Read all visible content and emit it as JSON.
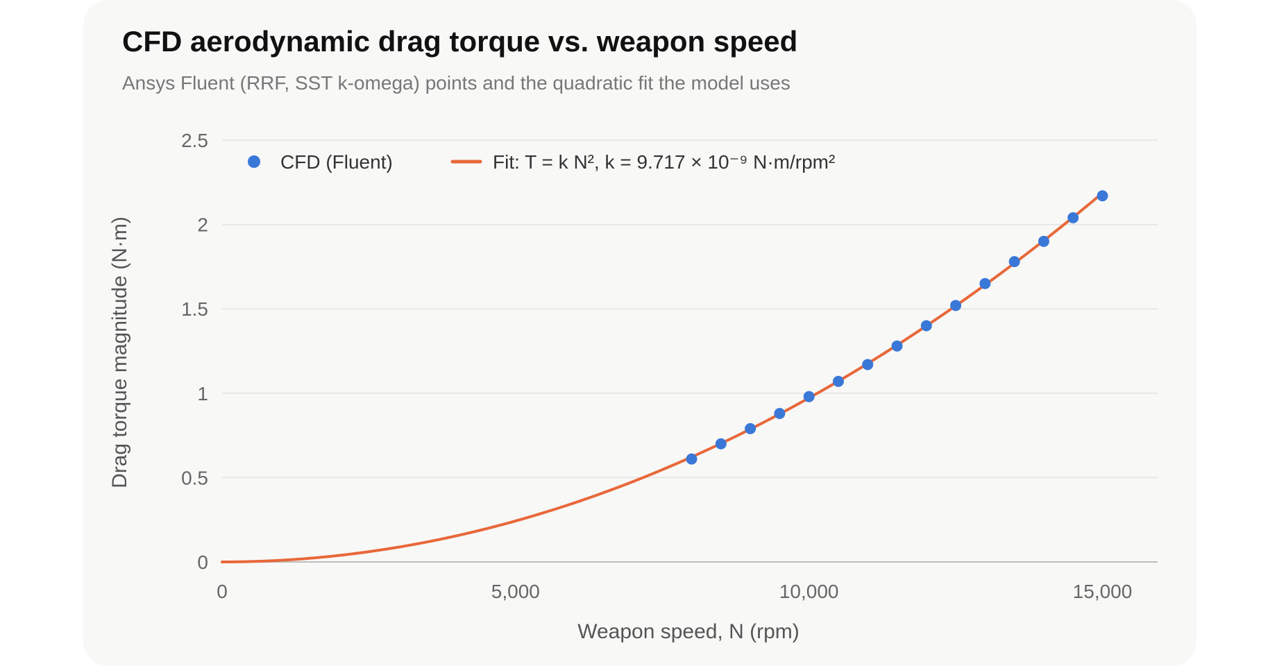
{
  "chart_data": {
    "type": "scatter",
    "title": "CFD aerodynamic drag torque vs. weapon speed",
    "subtitle": "Ansys Fluent (RRF, SST k-omega) points and the quadratic fit the model uses",
    "xlabel": "Weapon speed, N (rpm)",
    "ylabel": "Drag torque magnitude (N·m)",
    "xlim": [
      0,
      16000
    ],
    "ylim": [
      0,
      2.5
    ],
    "x_ticks": [
      0,
      5000,
      10000,
      15000
    ],
    "x_tick_labels": [
      "0",
      "5,000",
      "10,000",
      "15,000"
    ],
    "y_ticks": [
      0,
      0.5,
      1,
      1.5,
      2,
      2.5
    ],
    "y_tick_labels": [
      "0",
      "0.5",
      "1",
      "1.5",
      "2",
      "2.5"
    ],
    "grid": "horizontal",
    "legend_position": "top-left",
    "series": [
      {
        "name": "CFD (Fluent)",
        "kind": "points",
        "color": "#3a78d8",
        "points": [
          [
            8000,
            0.61
          ],
          [
            8500,
            0.7
          ],
          [
            9000,
            0.79
          ],
          [
            9500,
            0.88
          ],
          [
            10000,
            0.98
          ],
          [
            10500,
            1.07
          ],
          [
            11000,
            1.17
          ],
          [
            11500,
            1.28
          ],
          [
            12000,
            1.4
          ],
          [
            12500,
            1.52
          ],
          [
            13000,
            1.65
          ],
          [
            13500,
            1.78
          ],
          [
            14000,
            1.9
          ],
          [
            14500,
            2.04
          ],
          [
            15000,
            2.17
          ]
        ]
      },
      {
        "name": "Fit: T = k N², k = 9.717 × 10⁻⁹ N·m/rpm²",
        "kind": "line",
        "color": "#e8683a",
        "k": 9.717e-09,
        "x_range": [
          0,
          15000
        ]
      }
    ]
  }
}
